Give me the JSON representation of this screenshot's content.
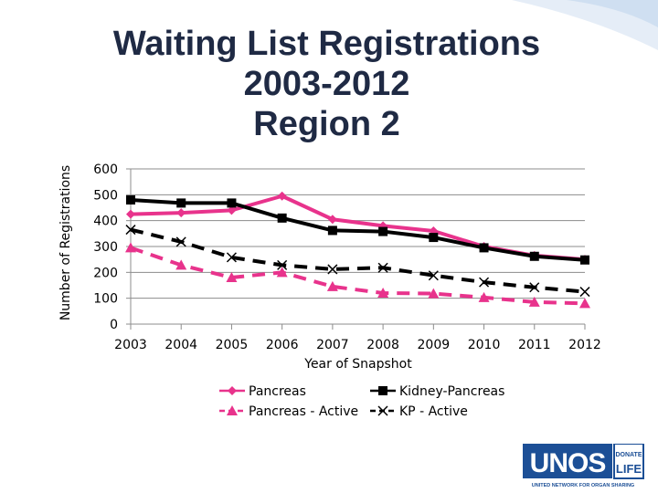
{
  "title_lines": [
    "Waiting List Registrations",
    "2003-2012",
    "Region 2"
  ],
  "chart_data": {
    "type": "line",
    "title": "Waiting List Registrations 2003-2012 Region 2",
    "xlabel": "Year of Snapshot",
    "ylabel": "Number of Registrations",
    "categories": [
      "2003",
      "2004",
      "2005",
      "2006",
      "2007",
      "2008",
      "2009",
      "2010",
      "2011",
      "2012"
    ],
    "yticks": [
      "0",
      "100",
      "200",
      "300",
      "400",
      "500",
      "600"
    ],
    "ylim": [
      0,
      600
    ],
    "grid": true,
    "legend_position": "bottom",
    "series": [
      {
        "name": "Pancreas",
        "values": [
          425,
          430,
          440,
          495,
          405,
          380,
          360,
          300,
          265,
          250
        ],
        "color": "#e8338c",
        "marker": "diamond",
        "dashed": false
      },
      {
        "name": "Kidney-Pancreas",
        "values": [
          480,
          468,
          468,
          410,
          362,
          358,
          335,
          295,
          262,
          248
        ],
        "color": "#000000",
        "marker": "square",
        "dashed": false
      },
      {
        "name": "Pancreas - Active",
        "values": [
          295,
          228,
          180,
          200,
          145,
          120,
          118,
          103,
          85,
          80
        ],
        "color": "#e8338c",
        "marker": "triangle",
        "dashed": true
      },
      {
        "name": "KP - Active",
        "values": [
          365,
          318,
          258,
          228,
          212,
          218,
          188,
          162,
          142,
          125
        ],
        "color": "#000000",
        "marker": "x",
        "dashed": true
      }
    ]
  },
  "logo": {
    "brand": "UNOS",
    "badge_top": "DONATE",
    "badge_bottom": "LIFE",
    "tagline": "UNITED NETWORK FOR ORGAN SHARING"
  },
  "colors": {
    "title": "#1f2a44",
    "pancreas": "#e8338c",
    "kidney_pancreas": "#000000",
    "logo_blue": "#1c4f96"
  }
}
